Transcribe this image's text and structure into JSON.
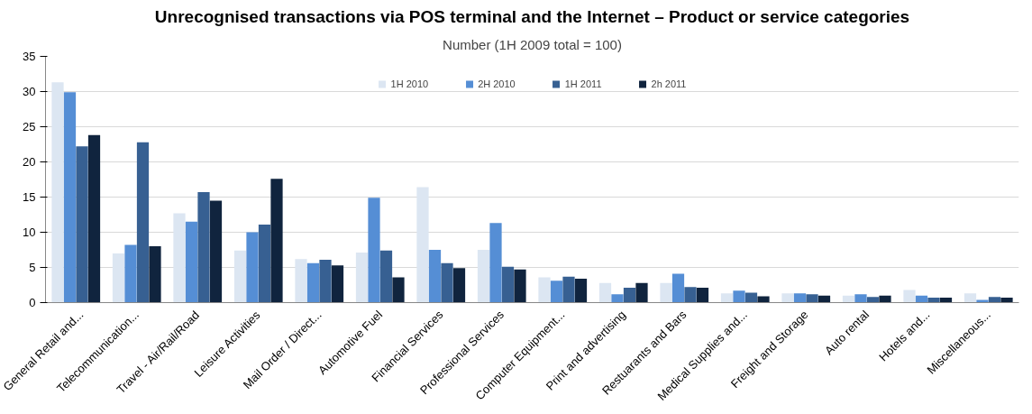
{
  "chart_data": {
    "type": "bar",
    "title": "Unrecognised transactions via POS terminal and the Internet – Product or service categories",
    "subtitle": "Number (1H 2009 total = 100)",
    "categories": [
      "General Retail and...",
      "Telecommunication...",
      "Travel - Air/Rail/Road",
      "Leisure Activities",
      "Mail Order / Direct...",
      "Automotive Fuel",
      "Financial Services",
      "Professional Services",
      "Computer Equipment...",
      "Print and advertising",
      "Restuarants and Bars",
      "Medical Supplies and...",
      "Freight and Storage",
      "Auto rental",
      "Hotels and...",
      "Miscellaneous..."
    ],
    "series": [
      {
        "name": "1H 2010",
        "color": "#dce6f2",
        "values": [
          31.3,
          7.0,
          12.7,
          7.4,
          6.2,
          7.1,
          16.4,
          7.5,
          3.6,
          2.8,
          2.8,
          1.3,
          1.3,
          1.0,
          1.8,
          1.3
        ]
      },
      {
        "name": "2H 2010",
        "color": "#558ed5",
        "values": [
          29.9,
          8.2,
          11.5,
          10.0,
          5.6,
          14.9,
          7.5,
          11.3,
          3.1,
          1.2,
          4.1,
          1.7,
          1.3,
          1.2,
          1.0,
          0.4
        ]
      },
      {
        "name": "1H 2011",
        "color": "#376092",
        "values": [
          22.2,
          22.8,
          15.7,
          11.1,
          6.1,
          7.4,
          5.6,
          5.1,
          3.7,
          2.1,
          2.2,
          1.4,
          1.2,
          0.8,
          0.7,
          0.8
        ]
      },
      {
        "name": "2h 2011",
        "color": "#10243e",
        "values": [
          23.8,
          8.0,
          14.5,
          17.6,
          5.3,
          3.6,
          4.9,
          4.7,
          3.4,
          2.8,
          2.1,
          0.9,
          1.0,
          1.0,
          0.7,
          0.7
        ]
      }
    ],
    "ylim": [
      0,
      35
    ],
    "yticks": [
      0,
      5,
      10,
      15,
      20,
      25,
      30,
      35
    ],
    "grid": "y",
    "legend": "top"
  }
}
